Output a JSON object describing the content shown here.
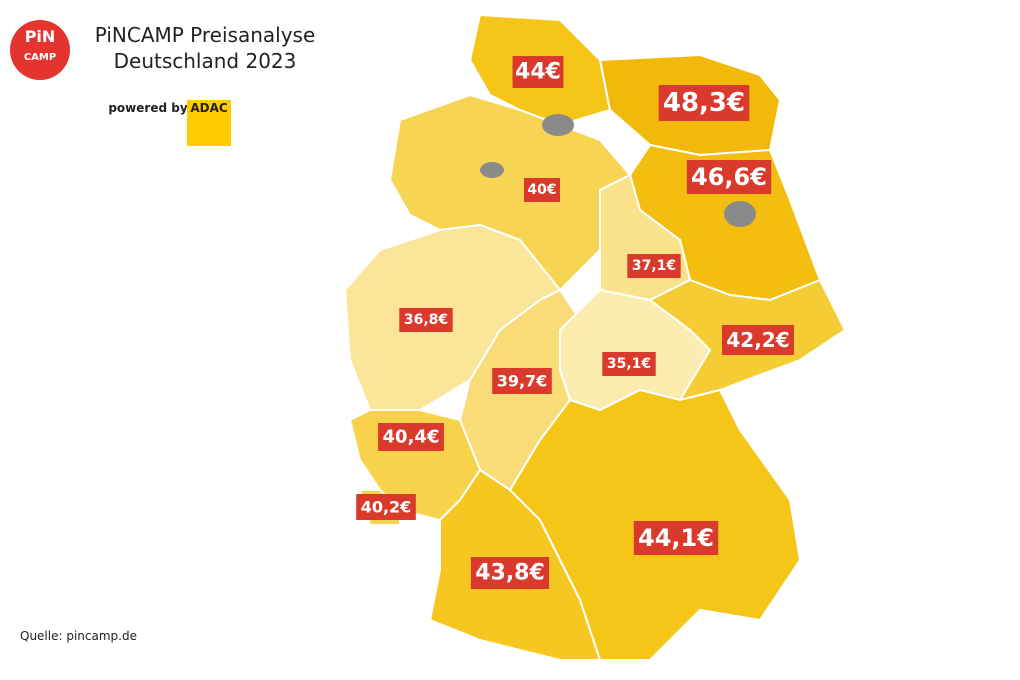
{
  "header": {
    "logo": [
      "PiN",
      "CAMP"
    ],
    "title": [
      "PiNCAMP Preisanalyse",
      "Deutschland 2023"
    ],
    "powered_by": "powered by",
    "sponsor": "ADAC"
  },
  "regions": [
    {
      "label": "44€"
    },
    {
      "label": "48,3€"
    },
    {
      "label": "46,6€"
    },
    {
      "label": "40€"
    },
    {
      "label": "37,1€"
    },
    {
      "label": "36,8€"
    },
    {
      "label": "39,7€"
    },
    {
      "label": "35,1€"
    },
    {
      "label": "42,2€"
    },
    {
      "label": "40,4€"
    },
    {
      "label": "40,2€"
    },
    {
      "label": "44,1€"
    },
    {
      "label": "43,8€"
    }
  ],
  "source": "Quelle: pincamp.de"
}
